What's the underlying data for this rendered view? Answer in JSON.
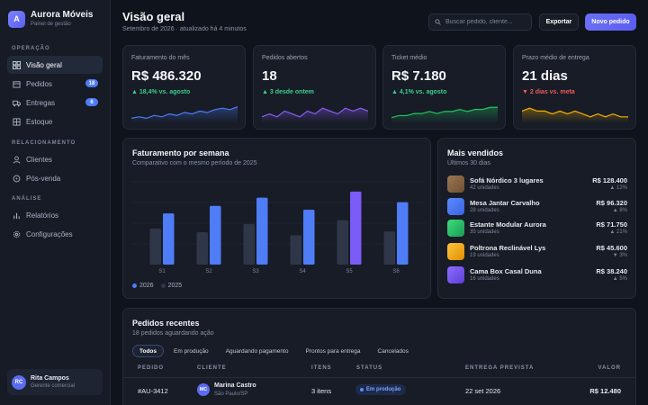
{
  "brand": {
    "logo_letter": "A",
    "name": "Aurora Móveis",
    "subtitle": "Painel de gestão"
  },
  "sidebar": {
    "sections": [
      {
        "label": "OPERAÇÃO"
      },
      {
        "label": "RELACIONAMENTO"
      },
      {
        "label": "ANÁLISE"
      }
    ],
    "items": [
      {
        "label": "Visão geral",
        "icon": "grid-icon",
        "active": true
      },
      {
        "label": "Pedidos",
        "icon": "box-icon",
        "badge": "18"
      },
      {
        "label": "Entregas",
        "icon": "truck-icon",
        "badge": "6"
      },
      {
        "label": "Estoque",
        "icon": "inventory-icon"
      },
      {
        "label": "Clientes",
        "icon": "user-icon"
      },
      {
        "label": "Pós-venda",
        "icon": "chat-icon"
      },
      {
        "label": "Relatórios",
        "icon": "bar-chart-icon"
      },
      {
        "label": "Configurações",
        "icon": "gear-icon"
      }
    ],
    "user": {
      "initials": "RC",
      "name": "Rita Campos",
      "role": "Gerente comercial"
    }
  },
  "header": {
    "title": "Visão geral",
    "subtitle": "Setembro de 2026 · atualizado há 4 minutos",
    "search_placeholder": "Buscar pedido, cliente...",
    "export_label": "Exportar",
    "new_order_label": "Novo pedido"
  },
  "kpis": [
    {
      "label": "Faturamento do mês",
      "value": "R$ 486.320",
      "delta": "▲ 18,4% vs. agosto",
      "trend": "up",
      "color": "#4f7cf7",
      "spark": [
        4,
        5,
        4,
        6,
        5,
        7,
        6,
        8,
        7,
        9,
        8,
        10,
        11,
        10,
        12
      ]
    },
    {
      "label": "Pedidos abertos",
      "value": "18",
      "delta": "▲ 3 desde ontem",
      "trend": "up",
      "color": "#8b5cf6",
      "spark": [
        5,
        6,
        5,
        7,
        6,
        5,
        7,
        6,
        8,
        7,
        6,
        8,
        7,
        8,
        7
      ]
    },
    {
      "label": "Ticket médio",
      "value": "R$ 7.180",
      "delta": "▲ 4,1% vs. agosto",
      "trend": "up",
      "color": "#22c55e",
      "spark": [
        4,
        5,
        5,
        6,
        6,
        7,
        6,
        7,
        7,
        8,
        7,
        8,
        8,
        9,
        9
      ]
    },
    {
      "label": "Prazo médio de entrega",
      "value": "21 dias",
      "delta": "▼ 2 dias vs. meta",
      "trend": "down",
      "color": "#f5b000",
      "spark": [
        8,
        9,
        8,
        8,
        7,
        8,
        7,
        8,
        7,
        6,
        7,
        6,
        7,
        6,
        6
      ]
    }
  ],
  "weekly": {
    "title": "Faturamento por semana",
    "subtitle": "Comparativo com o mesmo período de 2025",
    "legend": [
      {
        "label": "2026",
        "color": "#4f7cf7"
      },
      {
        "label": "2025",
        "color": "#2e3648"
      }
    ]
  },
  "chart_data": {
    "type": "bar",
    "categories": [
      "S1",
      "S2",
      "S3",
      "S4",
      "S5",
      "S6"
    ],
    "series": [
      {
        "name": "2025",
        "values": [
          48,
          43,
          54,
          39,
          59,
          44
        ],
        "color": "#2e3648"
      },
      {
        "name": "2026",
        "values": [
          68,
          78,
          89,
          73,
          97,
          83
        ],
        "color": "#4f7cf7",
        "highlight_index": 4,
        "highlight_color": "#7b5cf6"
      }
    ],
    "ylim": [
      0,
      110
    ],
    "grid": true,
    "legend_position": "bottom-left"
  },
  "best_sellers": {
    "title": "Mais vendidos",
    "subtitle": "Últimos 30 dias",
    "items": [
      {
        "name": "Sofá Nórdico 3 lugares",
        "units": "42 unidades",
        "value": "R$ 128.400",
        "trend": "▲ 12%",
        "color": "#8a6a4a"
      },
      {
        "name": "Mesa Jantar Carvalho",
        "units": "28 unidades",
        "value": "R$ 96.320",
        "trend": "▲ 8%",
        "color": "#4f7cf7"
      },
      {
        "name": "Estante Modular Aurora",
        "units": "35 unidades",
        "value": "R$ 71.750",
        "trend": "▲ 21%",
        "color": "#22c55e"
      },
      {
        "name": "Poltrona Reclinável Lys",
        "units": "19 unidades",
        "value": "R$ 45.600",
        "trend": "▼ 3%",
        "color": "#f5b000"
      },
      {
        "name": "Cama Box Casal Duna",
        "units": "16 unidades",
        "value": "R$ 38.240",
        "trend": "▲ 5%",
        "color": "#7b5cf6"
      }
    ]
  },
  "orders": {
    "title": "Pedidos recentes",
    "subtitle": "18 pedidos aguardando ação",
    "tabs": [
      "Todos",
      "Em produção",
      "Aguardando pagamento",
      "Prontos para entrega",
      "Cancelados"
    ],
    "columns": [
      "PEDIDO",
      "CLIENTE",
      "ITENS",
      "STATUS",
      "ENTREGA PREVISTA",
      "VALOR"
    ],
    "rows": [
      {
        "id": "#AU-3412",
        "client_initials": "MC",
        "client": "Marina Castro",
        "city": "São Paulo/SP",
        "items": "3 itens",
        "status": "Em produção",
        "delivery": "22 set 2026",
        "value": "R$ 12.480"
      }
    ]
  }
}
